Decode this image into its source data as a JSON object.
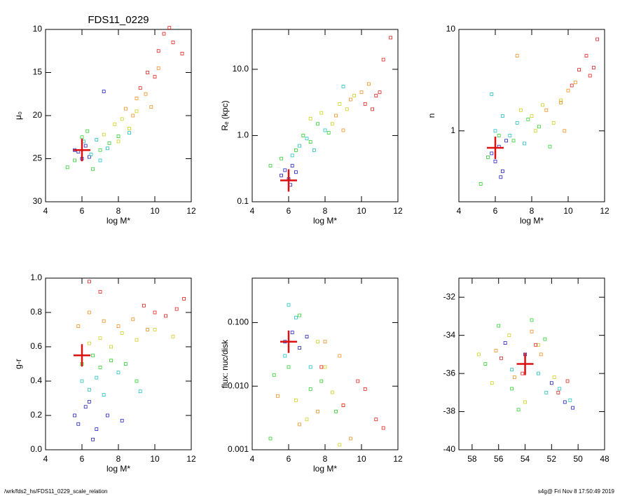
{
  "chart_data": [
    {
      "type": "scatter",
      "title": "FDS11_0229",
      "xlabel": "log M*",
      "ylabel": "μ₀",
      "xlim": [
        4,
        12
      ],
      "xticks": [
        4,
        6,
        8,
        10,
        12
      ],
      "ylim": [
        30,
        10
      ],
      "yticks": [
        10,
        15,
        20,
        25,
        30
      ],
      "series": [
        {
          "color": "#2020c0",
          "x": [
            5.8,
            6.0,
            6.2,
            6.4,
            5.6,
            7.2
          ],
          "values": [
            24.2,
            25.0,
            23.5,
            24.8,
            24.0,
            17.2
          ]
        },
        {
          "color": "#20c0c0",
          "x": [
            6.1,
            6.5,
            6.8,
            7.0,
            7.4,
            8.6
          ],
          "values": [
            23.0,
            24.5,
            22.8,
            25.2,
            23.8,
            22.0
          ]
        },
        {
          "color": "#30d030",
          "x": [
            5.2,
            5.6,
            6.0,
            6.6,
            7.0,
            7.5,
            8.0,
            6.3
          ],
          "values": [
            26.0,
            25.2,
            22.5,
            26.2,
            24.0,
            23.2,
            22.4,
            21.8
          ]
        },
        {
          "color": "#d0d020",
          "x": [
            7.2,
            7.8,
            8.2,
            8.6,
            9.0,
            8.0
          ],
          "values": [
            22.2,
            21.0,
            20.4,
            21.5,
            19.5,
            23.0
          ]
        },
        {
          "color": "#f09020",
          "x": [
            8.4,
            9.0,
            9.5,
            9.8,
            10.2,
            8.8
          ],
          "values": [
            19.2,
            18.0,
            17.5,
            19.0,
            14.5,
            20.0
          ]
        },
        {
          "color": "#e02020",
          "x": [
            9.6,
            10.2,
            10.5,
            10.8,
            11.0,
            11.5,
            10.0,
            9.2
          ],
          "values": [
            15.0,
            12.5,
            10.5,
            9.8,
            11.5,
            12.8,
            15.5,
            16.8
          ]
        }
      ],
      "marker": {
        "x": 6.0,
        "y": 24.0,
        "color": "#dd1010"
      }
    },
    {
      "type": "scatter",
      "xlabel": "log M*",
      "ylabel": "Rₑ (kpc)",
      "ylog": true,
      "xlim": [
        4,
        12
      ],
      "xticks": [
        4,
        6,
        8,
        10,
        12
      ],
      "ylim": [
        0.1,
        40
      ],
      "yticks": [
        0.1,
        {
          "value": 1,
          "label": "1.0"
        },
        {
          "value": 10,
          "label": "10.0"
        }
      ],
      "series": [
        {
          "color": "#2020c0",
          "x": [
            5.6,
            5.8,
            6.0,
            6.2,
            6.4,
            6.1
          ],
          "values": [
            0.25,
            0.3,
            0.22,
            0.35,
            0.28,
            0.18
          ]
        },
        {
          "color": "#20c0c0",
          "x": [
            6.2,
            6.6,
            7.0,
            7.4,
            8.0,
            9.0
          ],
          "values": [
            0.5,
            0.7,
            0.9,
            0.6,
            1.2,
            5.5
          ]
        },
        {
          "color": "#30d030",
          "x": [
            5.0,
            5.6,
            6.4,
            6.8,
            7.2,
            7.6,
            8.2
          ],
          "values": [
            0.35,
            0.45,
            0.6,
            1.0,
            0.8,
            1.5,
            1.1
          ]
        },
        {
          "color": "#d0d020",
          "x": [
            7.2,
            7.8,
            8.4,
            8.8,
            9.2,
            9.6
          ],
          "values": [
            1.8,
            2.2,
            1.5,
            3.0,
            2.5,
            4.0
          ]
        },
        {
          "color": "#f09020",
          "x": [
            8.6,
            9.4,
            10.0,
            10.4,
            9.0
          ],
          "values": [
            2.0,
            3.5,
            4.5,
            6.0,
            1.2
          ]
        },
        {
          "color": "#e02020",
          "x": [
            10.2,
            10.6,
            11.0,
            11.2,
            11.6,
            10.8
          ],
          "values": [
            3.0,
            2.5,
            4.5,
            14.0,
            30.0,
            4.0
          ]
        }
      ],
      "marker": {
        "x": 6.0,
        "y": 0.21,
        "color": "#dd1010"
      }
    },
    {
      "type": "scatter",
      "xlabel": "log M*",
      "ylabel": "n",
      "ylog": true,
      "xlim": [
        4,
        12
      ],
      "xticks": [
        4,
        6,
        8,
        10,
        12
      ],
      "ylim": [
        0.2,
        10
      ],
      "yticks": [
        1,
        10
      ],
      "series": [
        {
          "color": "#2020c0",
          "x": [
            5.8,
            6.0,
            6.2,
            6.4,
            6.6,
            6.3
          ],
          "values": [
            0.6,
            0.5,
            0.7,
            0.4,
            0.8,
            0.35
          ]
        },
        {
          "color": "#20c0c0",
          "x": [
            6.0,
            6.4,
            6.8,
            7.2,
            7.6,
            5.8
          ],
          "values": [
            1.0,
            1.4,
            0.9,
            1.2,
            0.75,
            2.3
          ]
        },
        {
          "color": "#30d030",
          "x": [
            5.2,
            5.6,
            6.2,
            7.0,
            7.8,
            8.4,
            9.0
          ],
          "values": [
            0.3,
            0.55,
            0.9,
            0.8,
            1.3,
            1.1,
            0.7
          ]
        },
        {
          "color": "#d0d020",
          "x": [
            7.4,
            8.0,
            8.6,
            9.2,
            9.6,
            8.2
          ],
          "values": [
            1.6,
            1.4,
            1.8,
            1.2,
            2.0,
            1.0
          ]
        },
        {
          "color": "#f09020",
          "x": [
            8.8,
            9.6,
            10.0,
            10.4,
            7.2,
            9.8
          ],
          "values": [
            1.6,
            1.9,
            2.5,
            3.0,
            5.5,
            1.0
          ]
        },
        {
          "color": "#e02020",
          "x": [
            10.2,
            10.6,
            11.0,
            11.2,
            11.6,
            11.4
          ],
          "values": [
            2.8,
            4.0,
            5.5,
            3.5,
            8.0,
            4.2
          ]
        }
      ],
      "marker": {
        "x": 6.0,
        "y": 0.68,
        "color": "#dd1010"
      }
    },
    {
      "type": "scatter",
      "xlabel": "log M*",
      "ylabel": "g-r",
      "xlim": [
        4,
        12
      ],
      "xticks": [
        4,
        6,
        8,
        10,
        12
      ],
      "ylim": [
        0,
        1
      ],
      "yticks": [
        {
          "value": 0,
          "label": "0.0"
        },
        0.2,
        0.4,
        0.6,
        0.8,
        {
          "value": 1,
          "label": "1.0"
        }
      ],
      "series": [
        {
          "color": "#2020c0",
          "x": [
            5.6,
            5.8,
            6.2,
            6.4,
            6.8,
            7.4,
            8.2,
            6.6
          ],
          "values": [
            0.2,
            0.15,
            0.25,
            0.28,
            0.12,
            0.2,
            0.17,
            0.06
          ]
        },
        {
          "color": "#20c0c0",
          "x": [
            6.0,
            6.4,
            6.8,
            7.2,
            8.0,
            9.2
          ],
          "values": [
            0.4,
            0.35,
            0.42,
            0.32,
            0.45,
            0.34
          ]
        },
        {
          "color": "#30d030",
          "x": [
            6.0,
            6.6,
            7.0,
            7.6,
            8.4,
            9.0
          ],
          "values": [
            0.5,
            0.55,
            0.48,
            0.52,
            0.5,
            0.4
          ]
        },
        {
          "color": "#d0d020",
          "x": [
            6.4,
            7.0,
            7.6,
            8.2,
            9.0,
            10.0,
            11.0
          ],
          "values": [
            0.62,
            0.65,
            0.6,
            0.68,
            0.64,
            0.7,
            0.66
          ]
        },
        {
          "color": "#f09020",
          "x": [
            5.8,
            6.4,
            7.2,
            8.0,
            8.8,
            9.6
          ],
          "values": [
            0.72,
            0.8,
            0.75,
            0.72,
            0.76,
            0.7
          ]
        },
        {
          "color": "#e02020",
          "x": [
            6.4,
            7.0,
            9.4,
            10.0,
            10.6,
            11.2,
            11.6
          ],
          "values": [
            0.98,
            0.92,
            0.84,
            0.8,
            0.78,
            0.82,
            0.88
          ]
        }
      ],
      "marker": {
        "x": 6.0,
        "y": 0.55,
        "color": "#dd1010"
      }
    },
    {
      "type": "scatter",
      "xlabel": "log M*",
      "ylabel": "flux: nuc/disk",
      "ylog": true,
      "xlim": [
        4,
        12
      ],
      "xticks": [
        4,
        6,
        8,
        10,
        12
      ],
      "ylim": [
        0.001,
        0.5
      ],
      "yticks": [
        0.001,
        {
          "value": 0.01,
          "label": "0.010"
        },
        {
          "value": 0.1,
          "label": "0.100"
        }
      ],
      "series": [
        {
          "color": "#2020c0",
          "x": [
            5.8,
            6.2,
            6.6,
            7.0
          ],
          "values": [
            0.05,
            0.07,
            0.04,
            0.06
          ]
        },
        {
          "color": "#20c0c0",
          "x": [
            6.0,
            6.4,
            5.8,
            7.2
          ],
          "values": [
            0.19,
            0.12,
            0.03,
            0.02
          ]
        },
        {
          "color": "#30d030",
          "x": [
            5.2,
            6.0,
            6.6,
            7.2,
            7.8,
            8.6,
            5.0
          ],
          "values": [
            0.015,
            0.02,
            0.13,
            0.009,
            0.012,
            0.004,
            0.0015
          ]
        },
        {
          "color": "#d0d020",
          "x": [
            6.4,
            7.0,
            7.6,
            8.0,
            8.4,
            9.0,
            8.8
          ],
          "values": [
            0.006,
            0.003,
            0.05,
            0.02,
            0.008,
            0.005,
            0.0012
          ]
        },
        {
          "color": "#f09020",
          "x": [
            5.4,
            6.6,
            7.6,
            8.0,
            8.8,
            9.4
          ],
          "values": [
            0.007,
            0.0025,
            0.004,
            0.05,
            0.03,
            0.0015
          ]
        },
        {
          "color": "#e02020",
          "x": [
            7.8,
            9.0,
            9.8,
            10.2,
            10.8,
            11.2
          ],
          "values": [
            0.02,
            0.005,
            0.012,
            0.009,
            0.003,
            0.0022
          ]
        }
      ],
      "marker": {
        "x": 6.0,
        "y": 0.05,
        "color": "#dd1010"
      }
    },
    {
      "type": "scatter",
      "xlim": [
        59,
        48
      ],
      "xticks": [
        58,
        56,
        54,
        52,
        50,
        48
      ],
      "ylim": [
        -40,
        -31
      ],
      "yticks": [
        -32,
        -34,
        -36,
        -38,
        -40
      ],
      "series": [
        {
          "color": "#2020c0",
          "x": [
            54.0,
            52.0,
            51.0,
            50.4,
            55.5
          ],
          "values": [
            -35.0,
            -36.5,
            -37.5,
            -37.8,
            -34.4
          ]
        },
        {
          "color": "#20c0c0",
          "x": [
            53.0,
            52.4,
            51.4,
            50.6,
            55.0
          ],
          "values": [
            -36.0,
            -37.0,
            -36.8,
            -37.4,
            -35.8
          ]
        },
        {
          "color": "#30d030",
          "x": [
            57.0,
            56.0,
            55.0,
            53.5,
            52.5,
            54.5
          ],
          "values": [
            -35.5,
            -33.5,
            -36.8,
            -33.2,
            -34.2,
            -37.9
          ]
        },
        {
          "color": "#d0d020",
          "x": [
            56.5,
            55.2,
            54.0,
            53.0,
            51.8,
            57.5
          ],
          "values": [
            -36.5,
            -34.0,
            -37.5,
            -34.5,
            -36.2,
            -35.0
          ]
        },
        {
          "color": "#f09020",
          "x": [
            56.2,
            54.8,
            53.5,
            52.8
          ],
          "values": [
            -34.8,
            -36.2,
            -33.8,
            -35.0
          ]
        },
        {
          "color": "#e02020",
          "x": [
            55.8,
            54.2,
            53.2,
            51.5,
            50.8
          ],
          "values": [
            -35.2,
            -36.0,
            -34.5,
            -37.0,
            -36.4
          ]
        }
      ],
      "marker": {
        "x": 54.0,
        "y": -35.5,
        "color": "#dd1010"
      }
    }
  ],
  "footer": {
    "left": "/wrk/fds2_hs/FDS11_0229_scale_relation",
    "right": "s4g@  Fri Nov  8 17:50:49 2019"
  }
}
